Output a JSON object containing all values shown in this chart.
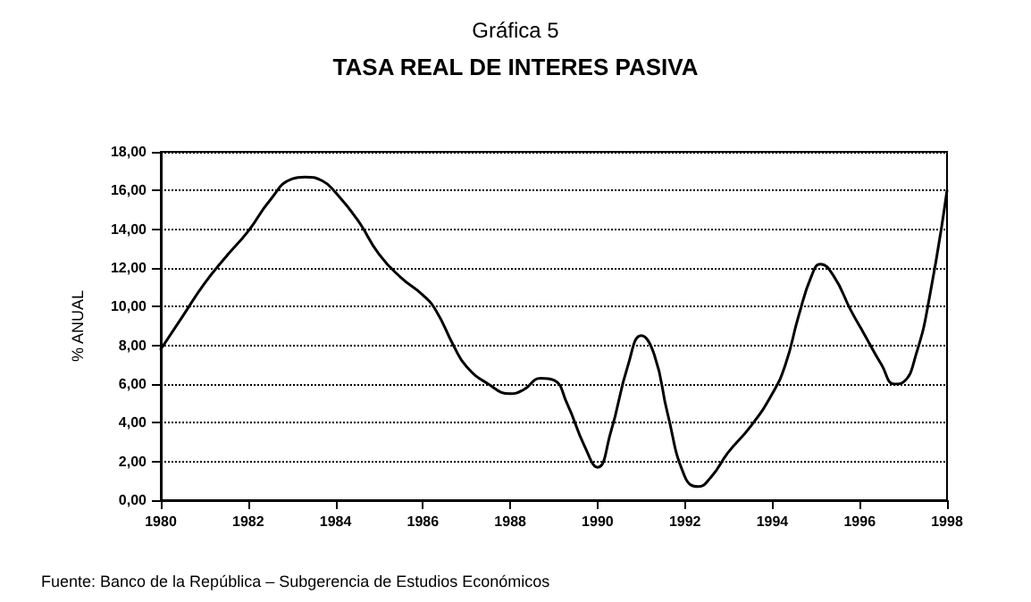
{
  "chart_data": {
    "type": "line",
    "title": "Gráfica 5",
    "subtitle": "TASA REAL DE INTERES PASIVA",
    "ylabel": "% ANUAL",
    "annotations": [
      "Fuente: Banco de la República – Subgerencia de Estudios Económicos"
    ],
    "x": [
      1980,
      1980.5,
      1981,
      1981.5,
      1982,
      1982.5,
      1983,
      1983.3,
      1983.7,
      1984,
      1984.5,
      1985,
      1985.5,
      1986,
      1986.3,
      1986.7,
      1987,
      1987.5,
      1988,
      1988.3,
      1988.7,
      1989,
      1989.3,
      1989.7,
      1990,
      1990.3,
      1990.7,
      1991,
      1991.3,
      1991.6,
      1992,
      1992.3,
      1992.6,
      1993,
      1993.5,
      1994,
      1994.3,
      1994.6,
      1994.9,
      1995.1,
      1995.4,
      1995.8,
      1996.1,
      1996.5,
      1996.8,
      1997,
      1997.3,
      1997.6,
      1998
    ],
    "series": [
      {
        "color": "#000000",
        "values": [
          7.8,
          9.5,
          11.2,
          12.6,
          13.9,
          15.5,
          16.6,
          16.7,
          16.5,
          15.9,
          14.5,
          12.7,
          11.5,
          10.6,
          9.8,
          8.0,
          6.9,
          6.0,
          5.5,
          5.7,
          6.3,
          6.2,
          5.0,
          2.8,
          1.7,
          3.5,
          7.0,
          8.5,
          7.5,
          4.5,
          1.2,
          0.7,
          1.2,
          2.5,
          3.8,
          5.5,
          7.0,
          9.5,
          11.6,
          12.2,
          11.6,
          9.8,
          8.6,
          7.0,
          6.0,
          6.1,
          7.6,
          10.5,
          16.0
        ]
      }
    ],
    "xlim": [
      1980,
      1998
    ],
    "xticks": [
      1980,
      1982,
      1984,
      1986,
      1988,
      1990,
      1992,
      1994,
      1996,
      1998
    ],
    "ylim": [
      0,
      18
    ],
    "yticks": [
      {
        "value": 0,
        "label": "0,00"
      },
      {
        "value": 2,
        "label": "2,00"
      },
      {
        "value": 4,
        "label": "4,00"
      },
      {
        "value": 6,
        "label": "6,00"
      },
      {
        "value": 8,
        "label": "8,00"
      },
      {
        "value": 10,
        "label": "10,00"
      },
      {
        "value": 12,
        "label": "12,00"
      },
      {
        "value": 14,
        "label": "14,00"
      },
      {
        "value": 16,
        "label": "16,00"
      },
      {
        "value": 18,
        "label": "18,00"
      }
    ],
    "grid": "y",
    "marker": "none",
    "line_style": "solid"
  }
}
